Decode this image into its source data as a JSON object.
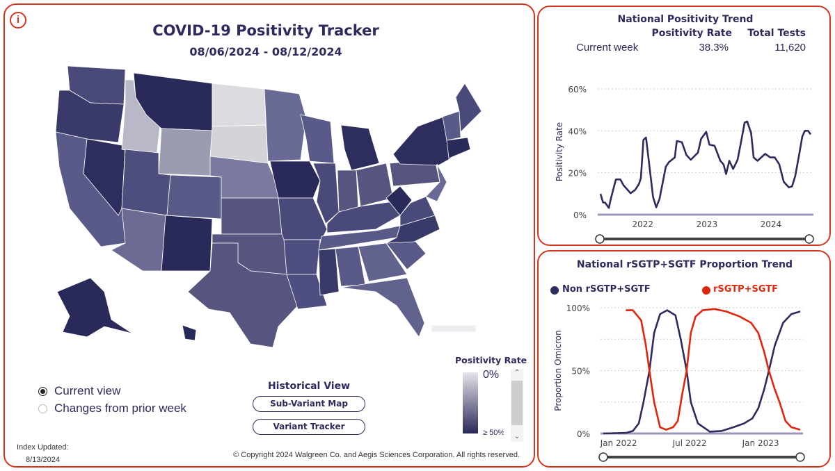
{
  "header": {
    "title": "COVID-19 Positivity Tracker",
    "date_range": "08/06/2024 - 08/12/2024",
    "info_icon": "info-icon"
  },
  "view_options": [
    {
      "label": "Current view",
      "selected": true
    },
    {
      "label": "Changes from prior week",
      "selected": false
    }
  ],
  "historical": {
    "title": "Historical View",
    "buttons": [
      "Sub-Variant Map",
      "Variant Tracker"
    ]
  },
  "legend": {
    "title": "Positivity Rate",
    "min_label": "0%",
    "max_label": "≥ 50%",
    "color_low": "#e4e4ea",
    "color_high": "#2a2858"
  },
  "footer": {
    "index_label": "Index Updated:",
    "index_date": "8/13/2024",
    "copyright": "© Copyright 2024 Walgreen Co. and Aegis Sciences Corporation. All rights reserved."
  },
  "colors": {
    "navy": "#2d2a5e",
    "red": "#e0260a",
    "border": "#d4351c"
  },
  "national": {
    "title": "National Positivity Trend",
    "col_rate": "Positivity Rate",
    "col_tests": "Total Tests",
    "row_label": "Current week",
    "rate": "38.3%",
    "tests": "11,620"
  },
  "proportion": {
    "title": "National rSGTP+SGTF Proportion Trend"
  },
  "chart_data": [
    {
      "type": "line",
      "title": "National Positivity Trend",
      "ylabel": "Positivity Rate",
      "xlabel": "",
      "ylim": [
        0,
        60
      ],
      "yticks": [
        "0%",
        "20%",
        "40%",
        "60%"
      ],
      "xticks": [
        "2022",
        "2023",
        "2024"
      ],
      "grid": true,
      "series": [
        {
          "name": "Positivity Rate",
          "color": "#2d2a5e",
          "x": [
            2021.34,
            2021.38,
            2021.41,
            2021.47,
            2021.5,
            2021.58,
            2021.65,
            2021.7,
            2021.81,
            2021.88,
            2021.94,
            2021.97,
            2022.01,
            2022.05,
            2022.1,
            2022.16,
            2022.21,
            2022.26,
            2022.36,
            2022.41,
            2022.5,
            2022.53,
            2022.61,
            2022.68,
            2022.75,
            2022.86,
            2022.91,
            2022.99,
            2023.04,
            2023.12,
            2023.21,
            2023.26,
            2023.3,
            2023.35,
            2023.41,
            2023.48,
            2023.53,
            2023.59,
            2023.63,
            2023.69,
            2023.73,
            2023.79,
            2023.91,
            2023.99,
            2024.06,
            2024.13,
            2024.2,
            2024.28,
            2024.33,
            2024.38,
            2024.44,
            2024.49,
            2024.53,
            2024.58,
            2024.62
          ],
          "y": [
            9.9,
            5.8,
            5.8,
            3.2,
            7.4,
            16.8,
            16.8,
            14,
            10.2,
            11.8,
            14.6,
            17.4,
            35.7,
            36.8,
            24,
            8.5,
            3.5,
            7.4,
            22.9,
            25.1,
            27.3,
            35.1,
            34.6,
            28.5,
            26.2,
            29.6,
            36.2,
            39.5,
            33.4,
            32.9,
            25.7,
            24,
            19.4,
            25.7,
            21.8,
            26.2,
            34,
            44,
            44.5,
            39,
            27.3,
            25.7,
            29,
            27.3,
            27.3,
            24,
            15.7,
            13,
            13.5,
            18.5,
            28.5,
            37.3,
            40,
            40,
            38.3
          ]
        }
      ]
    },
    {
      "type": "line",
      "title": "National rSGTP+SGTF Proportion Trend",
      "ylabel": "Proportion Omicron",
      "xlabel": "",
      "x_unit": "months since Jan 2022",
      "ylim": [
        0,
        100
      ],
      "yticks": [
        "0%",
        "50%",
        "100%"
      ],
      "xticks": [
        "Jan 2022",
        "Jul 2022",
        "Jan 2023"
      ],
      "grid": true,
      "legend": "top",
      "series": [
        {
          "name": "Non rSGTP+SGTF",
          "color": "#2d2a5e",
          "x": [
            -1.3,
            0.65,
            1.2,
            1.7,
            2.1,
            2.6,
            3.0,
            3.5,
            4.1,
            4.8,
            5.25,
            5.75,
            6.1,
            6.7,
            7.7,
            8.7,
            9.7,
            10.6,
            11.3,
            11.8,
            12.3,
            12.7,
            13.2,
            13.9,
            14.6,
            15.35
          ],
          "y": [
            0,
            0.5,
            2,
            8,
            25,
            50,
            80,
            95,
            98,
            94,
            75,
            50,
            25,
            8,
            1.5,
            2,
            5,
            8,
            12,
            20,
            35,
            50,
            70,
            88,
            95,
            97
          ]
        },
        {
          "name": "rSGTP+SGTF",
          "color": "#e0260a",
          "x": [
            0.6,
            1.2,
            1.9,
            2.3,
            2.6,
            3.0,
            3.5,
            4.0,
            4.6,
            5.0,
            5.35,
            5.75,
            6.1,
            6.5,
            7.1,
            8.1,
            9.1,
            10.25,
            11.2,
            11.8,
            12.3,
            12.7,
            13.2,
            13.6,
            14.1,
            14.6,
            15.35
          ],
          "y": [
            98,
            98,
            90,
            70,
            50,
            25,
            5,
            3,
            5,
            10,
            30,
            50,
            80,
            93,
            98,
            99,
            97,
            93,
            88,
            80,
            65,
            50,
            35,
            25,
            10,
            5,
            3
          ]
        }
      ]
    }
  ]
}
